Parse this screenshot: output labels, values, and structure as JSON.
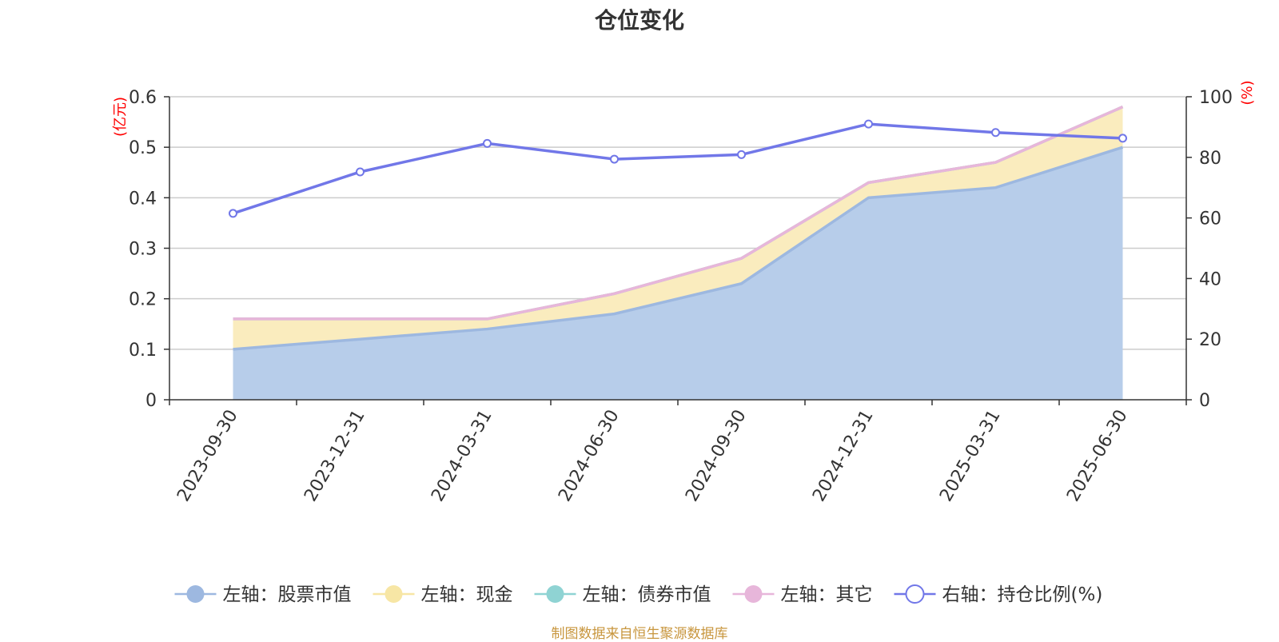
{
  "title": "仓位变化",
  "source_note": "制图数据来自恒生聚源数据库",
  "chart_data": {
    "type": "area",
    "categories": [
      "2023-09-30",
      "2023-12-31",
      "2024-03-31",
      "2024-06-30",
      "2024-09-30",
      "2024-12-31",
      "2025-03-31",
      "2025-06-30"
    ],
    "left_axis": {
      "unit": "(亿元)",
      "min": 0,
      "max": 0.6,
      "ticks": [
        "0",
        "0.1",
        "0.2",
        "0.3",
        "0.4",
        "0.5",
        "0.6"
      ]
    },
    "right_axis": {
      "unit": "(%)",
      "min": 0,
      "max": 100,
      "ticks": [
        "0",
        "20",
        "40",
        "60",
        "80",
        "100"
      ]
    },
    "stacked_series": [
      {
        "name": "左轴：股票市值",
        "axis": "left",
        "color": "#9db8e0",
        "fill": "#b7cdea",
        "values": [
          0.1,
          0.12,
          0.14,
          0.17,
          0.23,
          0.4,
          0.42,
          0.5
        ]
      },
      {
        "name": "左轴：现金",
        "axis": "left",
        "color": "#f7e6a5",
        "fill": "#faecbe",
        "values": [
          0.06,
          0.04,
          0.02,
          0.04,
          0.05,
          0.03,
          0.05,
          0.08
        ]
      },
      {
        "name": "左轴：债券市值",
        "axis": "left",
        "color": "#8fd3d3",
        "fill": "#a9dede",
        "values": [
          0,
          0,
          0,
          0,
          0,
          0,
          0,
          0
        ]
      },
      {
        "name": "左轴：其它",
        "axis": "left",
        "color": "#e7b6da",
        "fill": "#f0cce6",
        "values": [
          0,
          0,
          0,
          0,
          0,
          0,
          0,
          0
        ]
      }
    ],
    "line_series": {
      "name": "右轴：持仓比例(%)",
      "axis": "right",
      "color": "#7177e8",
      "values": [
        61.5,
        75.2,
        84.6,
        79.4,
        80.9,
        91.0,
        88.2,
        86.3
      ]
    },
    "grid": true,
    "legend_position": "bottom"
  }
}
